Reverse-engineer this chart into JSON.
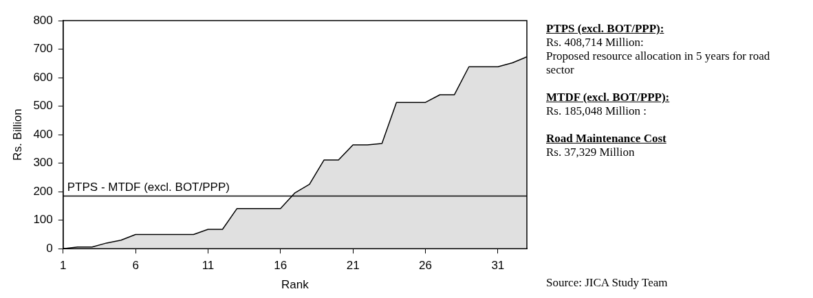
{
  "chart_data": {
    "type": "area",
    "xlabel": "Rank",
    "ylabel": "Rs. Billion",
    "x": [
      1,
      2,
      3,
      4,
      5,
      6,
      7,
      8,
      9,
      10,
      11,
      12,
      13,
      14,
      15,
      16,
      17,
      18,
      19,
      20,
      21,
      22,
      23,
      24,
      25,
      26,
      27,
      28,
      29,
      30,
      31,
      32,
      33
    ],
    "series": [
      {
        "color": "#e0e0e0",
        "values": [
          0,
          6,
          6,
          20,
          30,
          50,
          50,
          50,
          50,
          50,
          68,
          68,
          141,
          141,
          141,
          141,
          196,
          226,
          311,
          311,
          364,
          364,
          369,
          513,
          513,
          513,
          540,
          540,
          638,
          638,
          638,
          652,
          673
        ]
      }
    ],
    "xlim": [
      1,
      33
    ],
    "xticks": [
      1,
      6,
      11,
      16,
      21,
      26,
      31
    ],
    "ylim": [
      0,
      800
    ],
    "yticks": [
      0,
      100,
      200,
      300,
      400,
      500,
      600,
      700,
      800
    ],
    "grid": false,
    "legend": false,
    "ref_lines": [
      {
        "axis": "y",
        "value": 185,
        "label": "PTPS - MTDF (excl. BOT/PPP)",
        "color": "#000000"
      }
    ],
    "annotations": [
      "PTPS (excl. BOT/PPP):",
      "Rs. 408,714 Million:",
      "Proposed resource allocation in 5 years for road sector",
      "MTDF (excl. BOT/PPP):",
      "Rs. 185,048 Million :",
      "Road Maintenance Cost",
      "Rs. 37,329 Million",
      "Source: JICA Study Team"
    ]
  }
}
